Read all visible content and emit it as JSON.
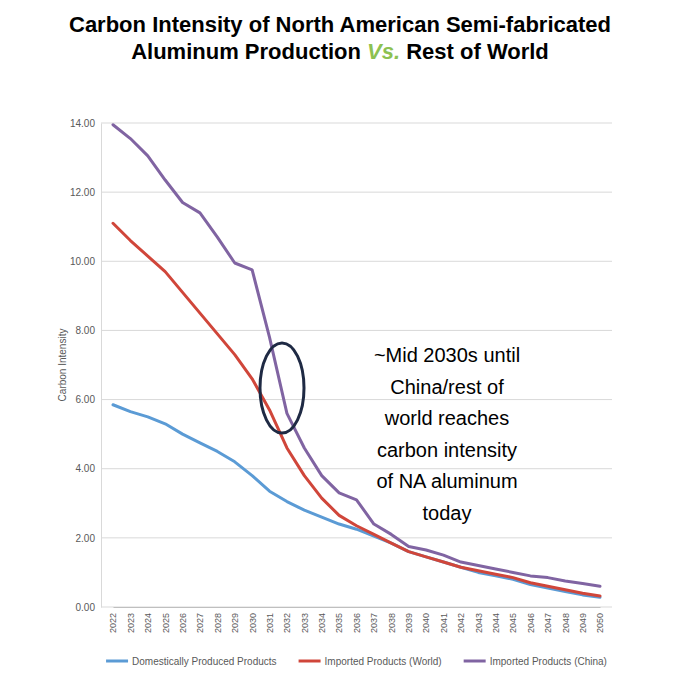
{
  "chart_data": {
    "type": "line",
    "title": [
      "Carbon Intensity of North American Semi-fabricated",
      "Aluminum Production Vs. Rest of World"
    ],
    "y_label": "Carbon Intensity",
    "annotation": [
      "~Mid 2030s until",
      "China/rest of",
      "world reaches",
      "carbon intensity",
      "of NA aluminum",
      "today"
    ],
    "categories": [
      "2022",
      "2023",
      "2024",
      "2025",
      "2026",
      "2027",
      "2028",
      "2029",
      "2030",
      "2031",
      "2032",
      "2033",
      "2034",
      "2035",
      "2036",
      "2037",
      "2038",
      "2039",
      "2040",
      "2041",
      "2042",
      "2043",
      "2044",
      "2045",
      "2046",
      "2047",
      "2048",
      "2049",
      "2050"
    ],
    "series": [
      {
        "name": "Domestically Produced Products",
        "color": "#5b9bd5",
        "values": [
          5.85,
          5.65,
          5.5,
          5.3,
          5.0,
          4.75,
          4.5,
          4.2,
          3.8,
          3.35,
          3.05,
          2.8,
          2.6,
          2.4,
          2.25,
          2.05,
          1.85,
          1.6,
          1.45,
          1.3,
          1.15,
          1.0,
          0.9,
          0.8,
          0.65,
          0.55,
          0.45,
          0.35,
          0.28
        ]
      },
      {
        "name": "Imported Products (World)",
        "color": "#d0463a",
        "values": [
          11.1,
          10.6,
          10.15,
          9.7,
          9.1,
          8.5,
          7.9,
          7.3,
          6.6,
          5.7,
          4.6,
          3.8,
          3.15,
          2.65,
          2.35,
          2.1,
          1.85,
          1.6,
          1.45,
          1.3,
          1.15,
          1.05,
          0.95,
          0.85,
          0.7,
          0.6,
          0.5,
          0.4,
          0.32
        ]
      },
      {
        "name": "Imported Products (China)",
        "color": "#8064a2",
        "values": [
          13.95,
          13.55,
          13.05,
          12.35,
          11.7,
          11.4,
          10.7,
          9.95,
          9.75,
          7.8,
          5.6,
          4.6,
          3.8,
          3.3,
          3.1,
          2.4,
          2.1,
          1.75,
          1.65,
          1.5,
          1.3,
          1.2,
          1.1,
          1.0,
          0.9,
          0.85,
          0.75,
          0.68,
          0.6
        ]
      }
    ],
    "ylim": [
      0,
      14
    ],
    "yticks": [
      {
        "value": 0,
        "label": "0.00"
      },
      {
        "value": 2,
        "label": "2.00"
      },
      {
        "value": 4,
        "label": "4.00"
      },
      {
        "value": 6,
        "label": "6.00"
      },
      {
        "value": 8,
        "label": "8.00"
      },
      {
        "value": 10,
        "label": "10.00"
      },
      {
        "value": 12,
        "label": "12.00"
      },
      {
        "value": 14,
        "label": "14.00"
      }
    ],
    "grid": true,
    "legend": "bottom"
  }
}
